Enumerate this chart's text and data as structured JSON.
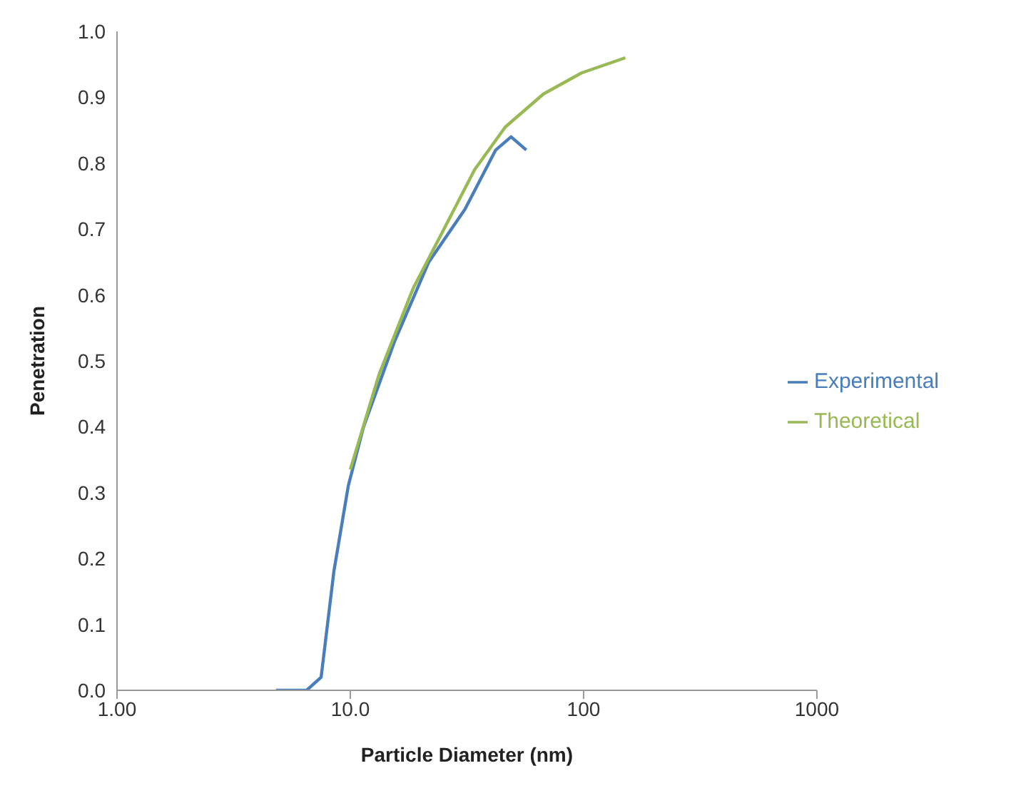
{
  "chart_data": {
    "type": "line",
    "xlabel": "Particle Diameter (nm)",
    "ylabel": "Penetration",
    "log": "x",
    "xlim": [
      1,
      1000
    ],
    "xticks": [
      {
        "value": 1,
        "label": "1.00"
      },
      {
        "value": 10,
        "label": "10.0"
      },
      100,
      1000
    ],
    "ylim": [
      0,
      1
    ],
    "yticks": [
      {
        "value": 0,
        "label": "0.0"
      },
      {
        "value": 0.1,
        "label": "0.1"
      },
      {
        "value": 0.2,
        "label": "0.2"
      },
      {
        "value": 0.3,
        "label": "0.3"
      },
      {
        "value": 0.4,
        "label": "0.4"
      },
      {
        "value": 0.5,
        "label": "0.5"
      },
      {
        "value": 0.6,
        "label": "0.6"
      },
      {
        "value": 0.7,
        "label": "0.7"
      },
      {
        "value": 0.8,
        "label": "0.8"
      },
      {
        "value": 0.9,
        "label": "0.9"
      },
      {
        "value": 1,
        "label": "1.0"
      }
    ],
    "grid": false,
    "legend": "right",
    "marker": "none",
    "series": [
      {
        "name": "Experimental",
        "color": "#4a7ebb",
        "x": [
          4.8,
          6.5,
          7.5,
          8.5,
          9.8,
          11.4,
          15.5,
          21.7,
          31,
          42,
          48.9,
          56.8
        ],
        "values": [
          0,
          0,
          0.02,
          0.18,
          0.31,
          0.4,
          0.53,
          0.65,
          0.73,
          0.82,
          0.84,
          0.82
        ]
      },
      {
        "name": "Theoretical",
        "color": "#98b954",
        "x": [
          10,
          13.3,
          18.6,
          25.2,
          34.1,
          46.2,
          67.3,
          98,
          151
        ],
        "values": [
          0.335,
          0.48,
          0.61,
          0.7,
          0.79,
          0.855,
          0.905,
          0.937,
          0.96
        ]
      }
    ]
  }
}
